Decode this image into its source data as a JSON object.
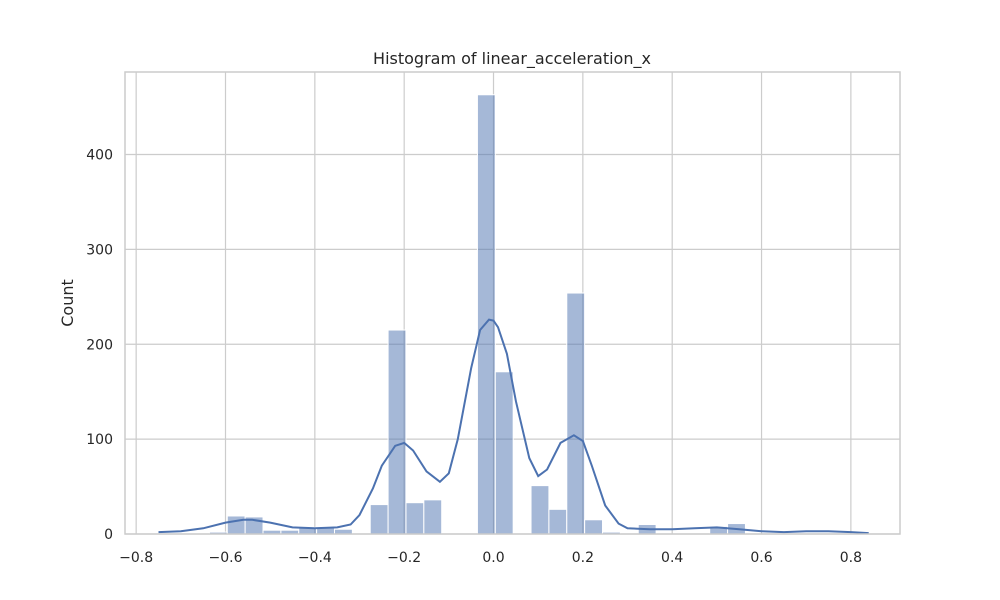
{
  "chart_data": {
    "type": "bar",
    "title": "Histogram of linear_acceleration_x",
    "xlabel": "",
    "ylabel": "Count",
    "xlim": [
      -0.825,
      0.91
    ],
    "ylim": [
      0,
      487
    ],
    "x_ticks": [
      -0.8,
      -0.6,
      -0.4,
      -0.2,
      0.0,
      0.2,
      0.4,
      0.6,
      0.8
    ],
    "x_tick_labels": [
      "−0.8",
      "−0.6",
      "−0.4",
      "−0.2",
      "0.0",
      "0.2",
      "0.4",
      "0.6",
      "0.8"
    ],
    "y_ticks": [
      0,
      100,
      200,
      300,
      400
    ],
    "y_tick_labels": [
      "0",
      "100",
      "200",
      "300",
      "400"
    ],
    "grid": true,
    "bar_color": "#4c72b0",
    "bar_opacity": 0.5,
    "kde_color": "#4c72b0",
    "bins": [
      {
        "x0": -0.636,
        "x1": -0.596,
        "count": 2
      },
      {
        "x0": -0.596,
        "x1": -0.556,
        "count": 19
      },
      {
        "x0": -0.556,
        "x1": -0.516,
        "count": 18
      },
      {
        "x0": -0.516,
        "x1": -0.476,
        "count": 4
      },
      {
        "x0": -0.476,
        "x1": -0.436,
        "count": 4
      },
      {
        "x0": -0.436,
        "x1": -0.396,
        "count": 7
      },
      {
        "x0": -0.396,
        "x1": -0.356,
        "count": 7
      },
      {
        "x0": -0.356,
        "x1": -0.316,
        "count": 5
      },
      {
        "x0": -0.316,
        "x1": -0.276,
        "count": 0
      },
      {
        "x0": -0.276,
        "x1": -0.236,
        "count": 31
      },
      {
        "x0": -0.236,
        "x1": -0.196,
        "count": 215
      },
      {
        "x0": -0.196,
        "x1": -0.156,
        "count": 33
      },
      {
        "x0": -0.156,
        "x1": -0.116,
        "count": 36
      },
      {
        "x0": -0.116,
        "x1": -0.076,
        "count": 0
      },
      {
        "x0": -0.036,
        "x1": 0.004,
        "count": 463
      },
      {
        "x0": 0.004,
        "x1": 0.044,
        "count": 171
      },
      {
        "x0": 0.044,
        "x1": 0.084,
        "count": 0
      },
      {
        "x0": 0.084,
        "x1": 0.124,
        "count": 51
      },
      {
        "x0": 0.124,
        "x1": 0.164,
        "count": 26
      },
      {
        "x0": 0.164,
        "x1": 0.204,
        "count": 254
      },
      {
        "x0": 0.204,
        "x1": 0.244,
        "count": 15
      },
      {
        "x0": 0.244,
        "x1": 0.284,
        "count": 2
      },
      {
        "x0": 0.284,
        "x1": 0.324,
        "count": 0
      },
      {
        "x0": 0.324,
        "x1": 0.364,
        "count": 10
      },
      {
        "x0": 0.364,
        "x1": 0.404,
        "count": 0
      },
      {
        "x0": 0.404,
        "x1": 0.444,
        "count": 0
      },
      {
        "x0": 0.444,
        "x1": 0.484,
        "count": 0
      },
      {
        "x0": 0.484,
        "x1": 0.524,
        "count": 8
      },
      {
        "x0": 0.524,
        "x1": 0.564,
        "count": 11
      }
    ],
    "kde": {
      "x": [
        -0.75,
        -0.7,
        -0.65,
        -0.6,
        -0.56,
        -0.54,
        -0.5,
        -0.45,
        -0.4,
        -0.35,
        -0.32,
        -0.3,
        -0.27,
        -0.25,
        -0.22,
        -0.2,
        -0.18,
        -0.15,
        -0.12,
        -0.1,
        -0.08,
        -0.05,
        -0.03,
        -0.01,
        0.0,
        0.01,
        0.03,
        0.05,
        0.08,
        0.1,
        0.12,
        0.15,
        0.18,
        0.2,
        0.22,
        0.25,
        0.28,
        0.3,
        0.35,
        0.4,
        0.45,
        0.5,
        0.55,
        0.6,
        0.65,
        0.7,
        0.75,
        0.8,
        0.84
      ],
      "y": [
        2,
        3,
        6,
        12,
        15,
        15,
        12,
        7,
        6,
        7,
        10,
        20,
        48,
        72,
        93,
        96,
        88,
        66,
        55,
        64,
        100,
        175,
        215,
        226,
        225,
        218,
        190,
        140,
        80,
        61,
        68,
        96,
        104,
        98,
        72,
        30,
        11,
        6,
        5,
        5,
        6,
        7,
        5,
        3,
        2,
        3,
        3,
        2,
        1
      ]
    }
  }
}
